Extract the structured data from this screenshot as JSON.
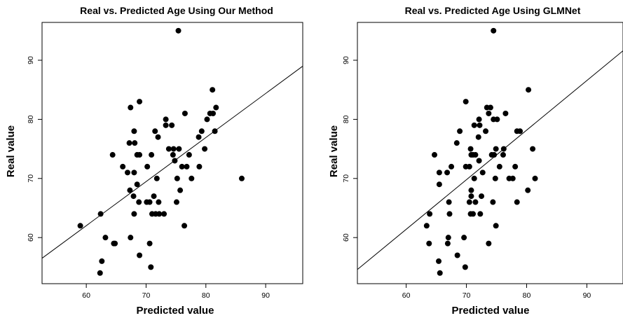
{
  "chart_data": [
    {
      "type": "scatter",
      "title": "Real vs. Predicted Age Using Our Method",
      "xlabel": "Predicted value",
      "ylabel": "Real value",
      "xlim": [
        52.6,
        96.2
      ],
      "ylim": [
        52.2,
        96.4
      ],
      "xticks": [
        60,
        70,
        80,
        90
      ],
      "yticks": [
        60,
        70,
        80,
        90
      ],
      "xtick_labels": [
        "60",
        "70",
        "80",
        "90"
      ],
      "ytick_labels": [
        "60",
        "70",
        "80",
        "90"
      ],
      "grid": false,
      "fit_line": {
        "x": [
          52.6,
          96.2
        ],
        "y": [
          56.5,
          89.0
        ]
      },
      "points": [
        [
          75.4,
          95.0
        ],
        [
          81.1,
          85.0
        ],
        [
          67.4,
          82.0
        ],
        [
          81.7,
          82.0
        ],
        [
          68.9,
          83.0
        ],
        [
          76.5,
          81.0
        ],
        [
          80.7,
          81.0
        ],
        [
          81.2,
          81.0
        ],
        [
          80.2,
          80.0
        ],
        [
          73.3,
          80.0
        ],
        [
          73.3,
          79.0
        ],
        [
          74.3,
          79.0
        ],
        [
          71.5,
          78.0
        ],
        [
          68.0,
          78.0
        ],
        [
          79.3,
          78.0
        ],
        [
          81.5,
          78.0
        ],
        [
          72.0,
          77.0
        ],
        [
          78.8,
          77.0
        ],
        [
          68.1,
          76.0
        ],
        [
          67.2,
          76.0
        ],
        [
          64.4,
          74.0
        ],
        [
          68.5,
          74.0
        ],
        [
          68.9,
          74.0
        ],
        [
          70.9,
          74.0
        ],
        [
          73.8,
          75.0
        ],
        [
          74.6,
          75.0
        ],
        [
          75.5,
          75.0
        ],
        [
          79.8,
          75.0
        ],
        [
          74.5,
          74.0
        ],
        [
          77.2,
          74.0
        ],
        [
          74.8,
          73.0
        ],
        [
          78.9,
          72.0
        ],
        [
          66.1,
          72.0
        ],
        [
          70.2,
          72.0
        ],
        [
          76.0,
          72.0
        ],
        [
          76.8,
          72.0
        ],
        [
          66.9,
          71.0
        ],
        [
          68.0,
          71.0
        ],
        [
          75.2,
          70.0
        ],
        [
          71.8,
          70.0
        ],
        [
          77.6,
          70.0
        ],
        [
          86.0,
          70.0
        ],
        [
          68.5,
          69.0
        ],
        [
          67.3,
          68.0
        ],
        [
          75.7,
          68.0
        ],
        [
          71.3,
          67.0
        ],
        [
          67.9,
          67.0
        ],
        [
          68.8,
          66.0
        ],
        [
          70.1,
          66.0
        ],
        [
          70.6,
          66.0
        ],
        [
          72.1,
          66.0
        ],
        [
          75.1,
          66.0
        ],
        [
          71.0,
          64.0
        ],
        [
          71.6,
          64.0
        ],
        [
          72.2,
          64.0
        ],
        [
          73.0,
          64.0
        ],
        [
          68.0,
          64.0
        ],
        [
          62.4,
          64.0
        ],
        [
          59.0,
          62.0
        ],
        [
          76.4,
          62.0
        ],
        [
          67.4,
          60.0
        ],
        [
          63.2,
          60.0
        ],
        [
          64.6,
          59.0
        ],
        [
          70.6,
          59.0
        ],
        [
          64.8,
          59.0
        ],
        [
          68.9,
          57.0
        ],
        [
          62.6,
          56.0
        ],
        [
          70.8,
          55.0
        ],
        [
          62.3,
          54.0
        ]
      ]
    },
    {
      "type": "scatter",
      "title": "Real vs. Predicted Age Using GLMNet",
      "xlabel": "Predicted value",
      "ylabel": "Real value",
      "xlim": [
        51.9,
        96.0
      ],
      "ylim": [
        52.2,
        96.4
      ],
      "xticks": [
        60,
        70,
        80,
        90
      ],
      "yticks": [
        60,
        70,
        80,
        90
      ],
      "xtick_labels": [
        "60",
        "70",
        "80",
        "90"
      ],
      "ytick_labels": [
        "60",
        "70",
        "80",
        "90"
      ],
      "grid": false,
      "fit_line": {
        "x": [
          51.9,
          96.0
        ],
        "y": [
          54.6,
          91.6
        ]
      },
      "points": [
        [
          74.5,
          95.0
        ],
        [
          80.3,
          85.0
        ],
        [
          69.9,
          83.0
        ],
        [
          73.4,
          82.0
        ],
        [
          74.0,
          82.0
        ],
        [
          76.5,
          81.0
        ],
        [
          73.7,
          81.0
        ],
        [
          72.1,
          80.0
        ],
        [
          74.5,
          80.0
        ],
        [
          75.1,
          80.0
        ],
        [
          71.3,
          79.0
        ],
        [
          72.2,
          79.0
        ],
        [
          68.9,
          78.0
        ],
        [
          73.2,
          78.0
        ],
        [
          78.4,
          78.0
        ],
        [
          78.9,
          78.0
        ],
        [
          72.0,
          77.0
        ],
        [
          68.4,
          76.0
        ],
        [
          70.7,
          75.0
        ],
        [
          74.9,
          75.0
        ],
        [
          76.2,
          75.0
        ],
        [
          81.0,
          75.0
        ],
        [
          64.7,
          74.0
        ],
        [
          70.8,
          74.0
        ],
        [
          71.1,
          74.0
        ],
        [
          71.5,
          74.0
        ],
        [
          74.2,
          74.0
        ],
        [
          74.6,
          74.0
        ],
        [
          76.1,
          74.0
        ],
        [
          72.1,
          73.0
        ],
        [
          67.5,
          72.0
        ],
        [
          69.9,
          72.0
        ],
        [
          70.5,
          72.0
        ],
        [
          75.5,
          72.0
        ],
        [
          78.1,
          72.0
        ],
        [
          66.8,
          71.0
        ],
        [
          65.5,
          71.0
        ],
        [
          72.7,
          71.0
        ],
        [
          71.3,
          70.0
        ],
        [
          74.8,
          70.0
        ],
        [
          77.1,
          70.0
        ],
        [
          77.7,
          70.0
        ],
        [
          81.4,
          70.0
        ],
        [
          65.5,
          69.0
        ],
        [
          70.8,
          68.0
        ],
        [
          80.2,
          68.0
        ],
        [
          70.8,
          67.0
        ],
        [
          72.5,
          67.0
        ],
        [
          67.1,
          66.0
        ],
        [
          70.5,
          66.0
        ],
        [
          71.5,
          66.0
        ],
        [
          74.4,
          66.0
        ],
        [
          78.4,
          66.0
        ],
        [
          63.9,
          64.0
        ],
        [
          67.2,
          64.0
        ],
        [
          70.7,
          64.0
        ],
        [
          71.1,
          64.0
        ],
        [
          72.3,
          64.0
        ],
        [
          63.4,
          62.0
        ],
        [
          74.9,
          62.0
        ],
        [
          67.0,
          60.0
        ],
        [
          69.6,
          60.0
        ],
        [
          63.8,
          59.0
        ],
        [
          66.9,
          59.0
        ],
        [
          73.7,
          59.0
        ],
        [
          68.5,
          57.0
        ],
        [
          65.4,
          56.0
        ],
        [
          69.8,
          55.0
        ],
        [
          65.6,
          54.0
        ]
      ]
    }
  ]
}
